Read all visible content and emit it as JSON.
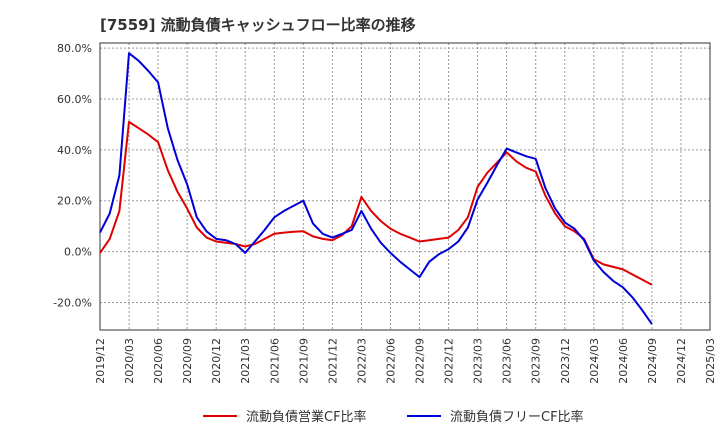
{
  "title": "[7559]  流動負債キャッシュフロー比率の推移",
  "colors": {
    "operating": "#e00000",
    "free": "#0000d8",
    "grid": "#999999",
    "axis": "#333333"
  },
  "chart_data": {
    "type": "line",
    "title": "[7559]  流動負債キャッシュフロー比率の推移",
    "xlabel": "",
    "ylabel": "",
    "ylim": [
      -30.8,
      82
    ],
    "grid": true,
    "legend_position": "bottom",
    "x_ticks": [
      "2019/12",
      "2020/03",
      "2020/06",
      "2020/09",
      "2020/12",
      "2021/03",
      "2021/06",
      "2021/09",
      "2021/12",
      "2022/03",
      "2022/06",
      "2022/09",
      "2022/12",
      "2023/03",
      "2023/06",
      "2023/09",
      "2023/12",
      "2024/03",
      "2024/06",
      "2024/09",
      "2024/12",
      "2025/03"
    ],
    "y_ticks": [
      "-20.0%",
      "0.0%",
      "20.0%",
      "40.0%",
      "60.0%",
      "80.0%"
    ],
    "y_tick_values": [
      -20,
      0,
      20,
      40,
      60,
      80
    ],
    "x": [
      "2019/12",
      "2020/01",
      "2020/02",
      "2020/03",
      "2020/04",
      "2020/05",
      "2020/06",
      "2020/07",
      "2020/08",
      "2020/09",
      "2020/10",
      "2020/11",
      "2020/12",
      "2021/01",
      "2021/02",
      "2021/03",
      "2021/04",
      "2021/05",
      "2021/06",
      "2021/07",
      "2021/08",
      "2021/09",
      "2021/10",
      "2021/11",
      "2021/12",
      "2022/01",
      "2022/02",
      "2022/03",
      "2022/04",
      "2022/05",
      "2022/06",
      "2022/07",
      "2022/08",
      "2022/09",
      "2022/10",
      "2022/11",
      "2022/12",
      "2023/01",
      "2023/02",
      "2023/03",
      "2023/04",
      "2023/05",
      "2023/06",
      "2023/07",
      "2023/08",
      "2023/09",
      "2023/10",
      "2023/11",
      "2023/12",
      "2024/01",
      "2024/02",
      "2024/03",
      "2024/04",
      "2024/05",
      "2024/06",
      "2024/07",
      "2024/08",
      "2024/09"
    ],
    "series": [
      {
        "name": "流動負債営業CF比率",
        "color": "#e00000",
        "values": [
          -0.5,
          5.0,
          16.0,
          51.0,
          48.5,
          46.0,
          43.0,
          32.0,
          23.5,
          17.0,
          9.5,
          5.5,
          4.0,
          3.5,
          3.0,
          2.0,
          3.0,
          5.0,
          7.0,
          7.5,
          7.8,
          8.0,
          6.0,
          5.0,
          4.5,
          6.5,
          10.0,
          21.5,
          16.0,
          12.0,
          9.0,
          7.0,
          5.5,
          4.0,
          4.5,
          5.0,
          5.5,
          8.5,
          13.5,
          25.5,
          31.0,
          35.0,
          39.0,
          35.5,
          33.0,
          31.5,
          22.0,
          15.0,
          10.0,
          8.0,
          5.0,
          -3.0,
          -5.0,
          -6.0,
          -7.0,
          -9.0,
          -11.0,
          -13.0
        ]
      },
      {
        "name": "流動負債フリーCF比率",
        "color": "#0000d8",
        "values": [
          7.5,
          15.0,
          30.0,
          78.0,
          75.0,
          71.0,
          66.5,
          48.5,
          36.0,
          26.5,
          13.5,
          8.0,
          5.0,
          4.5,
          3.0,
          -0.5,
          4.0,
          8.5,
          13.5,
          16.0,
          18.0,
          20.0,
          11.0,
          7.0,
          5.5,
          7.0,
          8.5,
          16.0,
          9.0,
          3.5,
          -0.5,
          -4.0,
          -7.0,
          -10.0,
          -4.0,
          -1.0,
          1.0,
          4.0,
          9.5,
          20.5,
          27.0,
          34.0,
          40.5,
          39.0,
          37.5,
          36.5,
          25.0,
          17.0,
          11.5,
          9.0,
          4.5,
          -3.5,
          -8.0,
          -11.5,
          -14.0,
          -18.0,
          -23.0,
          -28.5
        ]
      }
    ]
  }
}
